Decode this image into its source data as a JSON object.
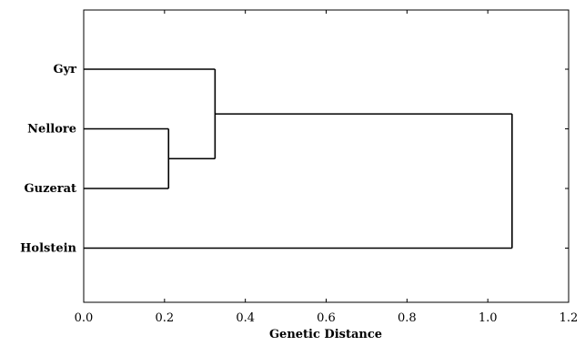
{
  "chart_data": {
    "type": "dendrogram",
    "title": "",
    "xlabel": "Genetic Distance",
    "ylabel": "",
    "xlim": [
      0.0,
      1.2
    ],
    "x_ticks": [
      "0.0",
      "0.2",
      "0.4",
      "0.6",
      "0.8",
      "1.0",
      "1.2"
    ],
    "x_tick_values": [
      0.0,
      0.2,
      0.4,
      0.6,
      0.8,
      1.0,
      1.2
    ],
    "grid": false,
    "leaves": [
      "Gyr",
      "Nellore",
      "Guzerat",
      "Holstein"
    ],
    "merges": [
      {
        "members": [
          "Nellore",
          "Guzerat"
        ],
        "distance": 0.21
      },
      {
        "members": [
          "Gyr",
          "Nellore",
          "Guzerat"
        ],
        "distance": 0.325
      },
      {
        "members": [
          "Gyr",
          "Nellore",
          "Guzerat",
          "Holstein"
        ],
        "distance": 1.06
      }
    ],
    "line_color": "#000000",
    "background_color": "#ffffff"
  }
}
